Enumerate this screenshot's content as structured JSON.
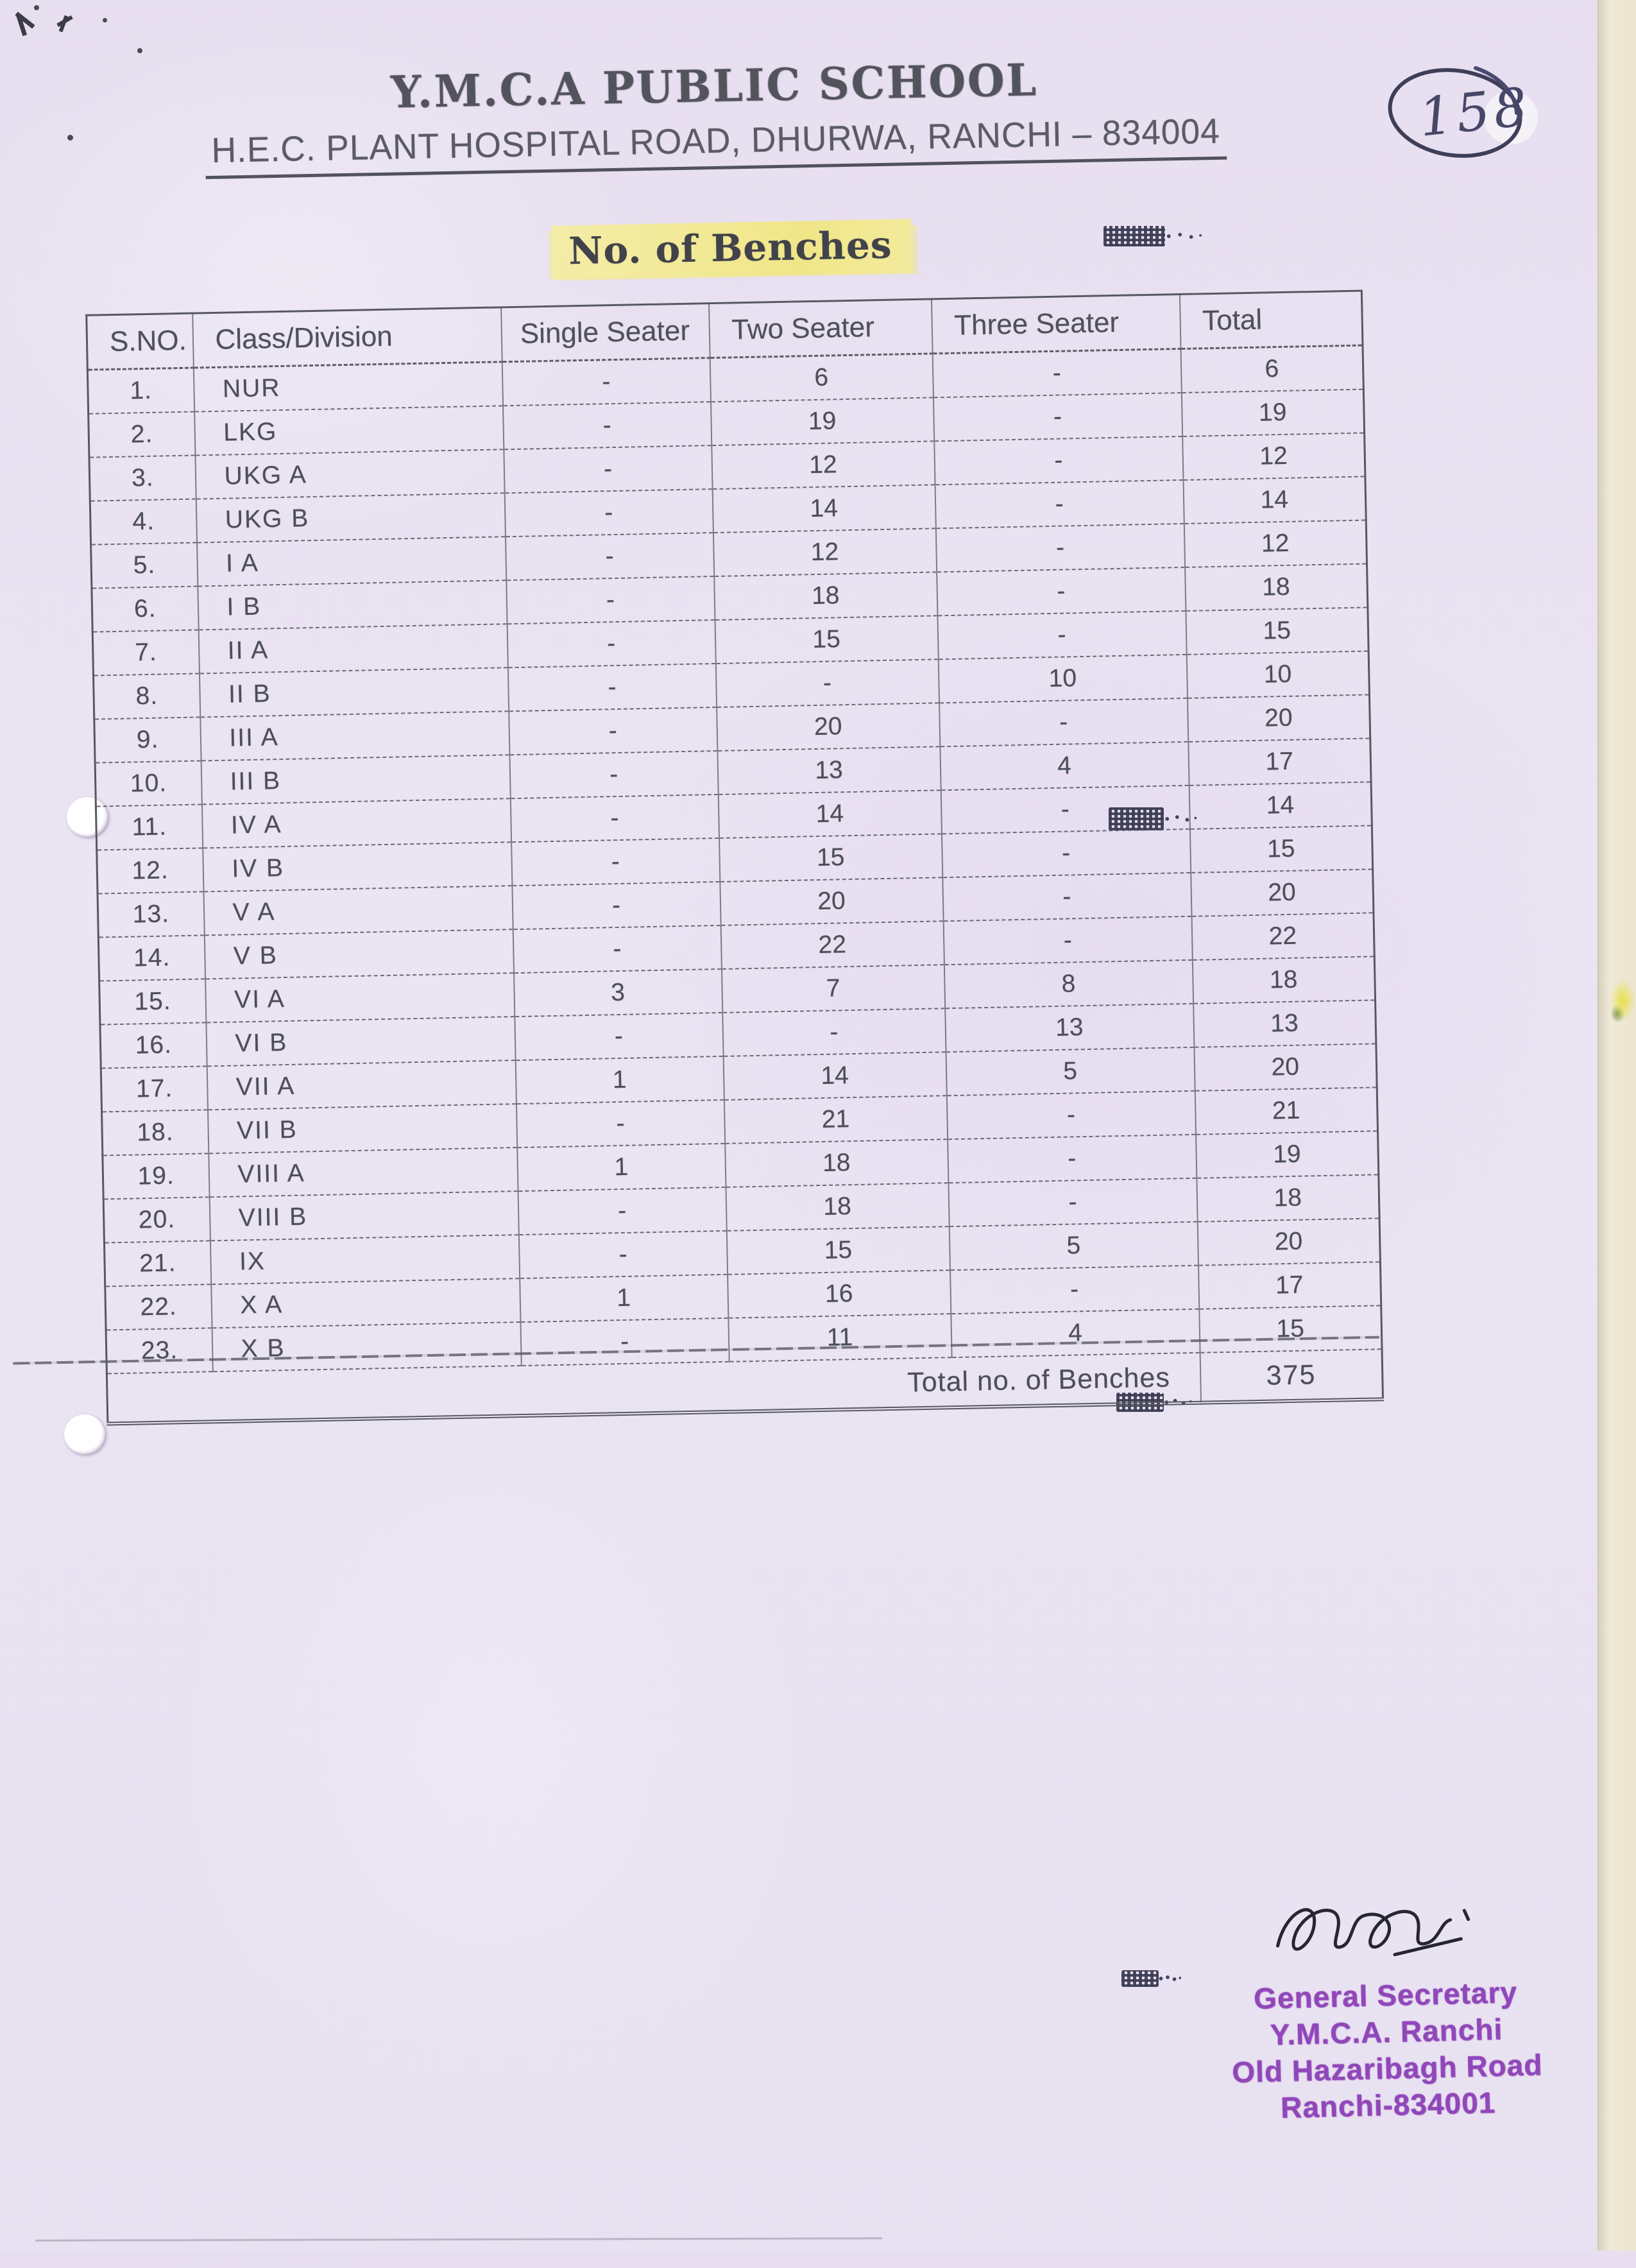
{
  "page": {
    "page_number": "158"
  },
  "header": {
    "school_name": "Y.M.C.A PUBLIC SCHOOL",
    "address": "H.E.C. PLANT HOSPITAL ROAD, DHURWA, RANCHI – 834004",
    "doc_title": "No. of Benches"
  },
  "table": {
    "columns": [
      "S.NO.",
      "Class/Division",
      "Single Seater",
      "Two Seater",
      "Three Seater",
      "Total"
    ],
    "rows": [
      [
        "1.",
        "NUR",
        "-",
        "6",
        "-",
        "6"
      ],
      [
        "2.",
        "LKG",
        "-",
        "19",
        "-",
        "19"
      ],
      [
        "3.",
        "UKG A",
        "-",
        "12",
        "-",
        "12"
      ],
      [
        "4.",
        "UKG B",
        "-",
        "14",
        "-",
        "14"
      ],
      [
        "5.",
        "I A",
        "-",
        "12",
        "-",
        "12"
      ],
      [
        "6.",
        "I B",
        "-",
        "18",
        "-",
        "18"
      ],
      [
        "7.",
        "II A",
        "-",
        "15",
        "-",
        "15"
      ],
      [
        "8.",
        "II B",
        "-",
        "-",
        "10",
        "10"
      ],
      [
        "9.",
        "III A",
        "-",
        "20",
        "-",
        "20"
      ],
      [
        "10.",
        "III B",
        "-",
        "13",
        "4",
        "17"
      ],
      [
        "11.",
        "IV A",
        "-",
        "14",
        "-",
        "14"
      ],
      [
        "12.",
        "IV B",
        "-",
        "15",
        "-",
        "15"
      ],
      [
        "13.",
        "V A",
        "-",
        "20",
        "-",
        "20"
      ],
      [
        "14.",
        "V B",
        "-",
        "22",
        "-",
        "22"
      ],
      [
        "15.",
        "VI A",
        "3",
        "7",
        "8",
        "18"
      ],
      [
        "16.",
        "VI B",
        "-",
        "-",
        "13",
        "13"
      ],
      [
        "17.",
        "VII A",
        "1",
        "14",
        "5",
        "20"
      ],
      [
        "18.",
        "VII B",
        "-",
        "21",
        "-",
        "21"
      ],
      [
        "19.",
        "VIII A",
        "1",
        "18",
        "-",
        "19"
      ],
      [
        "20.",
        "VIII B",
        "-",
        "18",
        "-",
        "18"
      ],
      [
        "21.",
        "IX",
        "-",
        "15",
        "5",
        "20"
      ],
      [
        "22.",
        "X A",
        "1",
        "16",
        "-",
        "17"
      ],
      [
        "23.",
        "X B",
        "-",
        "11",
        "4",
        "15"
      ]
    ],
    "footer_label": "Total no. of Benches",
    "footer_value": "375"
  },
  "stamp": {
    "lines": [
      "General Secretary",
      "Y.M.C.A. Ranchi",
      "Old Hazaribagh Road",
      "Ranchi-834001"
    ]
  },
  "colors": {
    "paper_lavender": "#e9e2f1",
    "stamp_purple": "#8a3cb5",
    "highlight_yellow": "#f0e688",
    "scan_edge_cream": "#ece5cf",
    "ink_gray": "#4c4e58"
  }
}
